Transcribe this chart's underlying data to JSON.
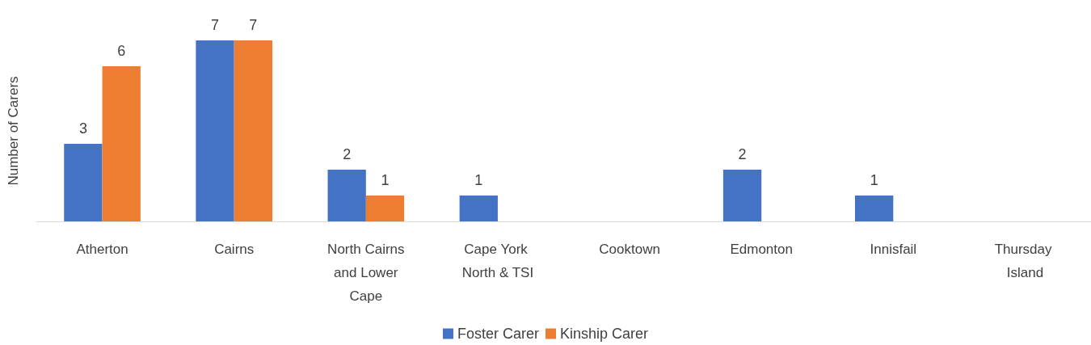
{
  "chart_data": {
    "type": "bar",
    "ylabel": "Number of Carers",
    "categories": [
      "Atherton",
      "Cairns",
      "North Cairns and Lower Cape",
      "Cape York North & TSI",
      "Cooktown",
      "Edmonton",
      "Innisfail",
      "Thursday Island"
    ],
    "series": [
      {
        "name": "Foster Carer",
        "color": "#4472c4",
        "values": [
          3,
          7,
          2,
          1,
          null,
          2,
          1,
          null
        ]
      },
      {
        "name": "Kinship Carer",
        "color": "#ed7d31",
        "values": [
          6,
          7,
          1,
          null,
          null,
          null,
          null,
          null
        ]
      }
    ],
    "data_labels": true,
    "grid": false,
    "legend": "bottom"
  }
}
